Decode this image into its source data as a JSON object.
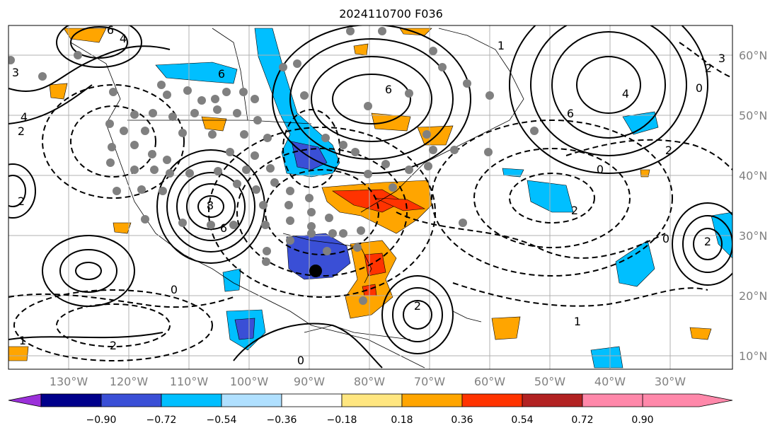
{
  "title": "2024110700 F036",
  "map": {
    "lon_labels": [
      "130°W",
      "120°W",
      "110°W",
      "100°W",
      "90°W",
      "80°W",
      "70°W",
      "60°W",
      "50°W",
      "40°W",
      "30°W"
    ],
    "lat_labels": [
      "60°N",
      "50°N",
      "40°N",
      "30°N",
      "20°N",
      "10°N"
    ],
    "contour_labels": [
      "6",
      "4",
      "3",
      "4",
      "2",
      "6",
      "8",
      "6",
      "6",
      "6",
      "4",
      "2",
      "2",
      "0",
      "2",
      "0",
      "1",
      "1",
      "2",
      "0",
      "0",
      "2",
      "3",
      "2",
      "0",
      "2",
      "1"
    ],
    "colors": {
      "land_line": "#000000",
      "grid": "#b0b0b0",
      "station": "#808080"
    }
  },
  "colorbar": {
    "ticks": [
      "−0.90",
      "−0.72",
      "−0.54",
      "−0.36",
      "−0.18",
      "0.18",
      "0.36",
      "0.54",
      "0.72",
      "0.90"
    ],
    "colors": [
      "#9b30d9",
      "#00008b",
      "#3a4fd6",
      "#00bfff",
      "#b0e0ff",
      "#ffffff",
      "#ffe680",
      "#ffa500",
      "#ff3300",
      "#b22222",
      "#ff88aa"
    ]
  }
}
